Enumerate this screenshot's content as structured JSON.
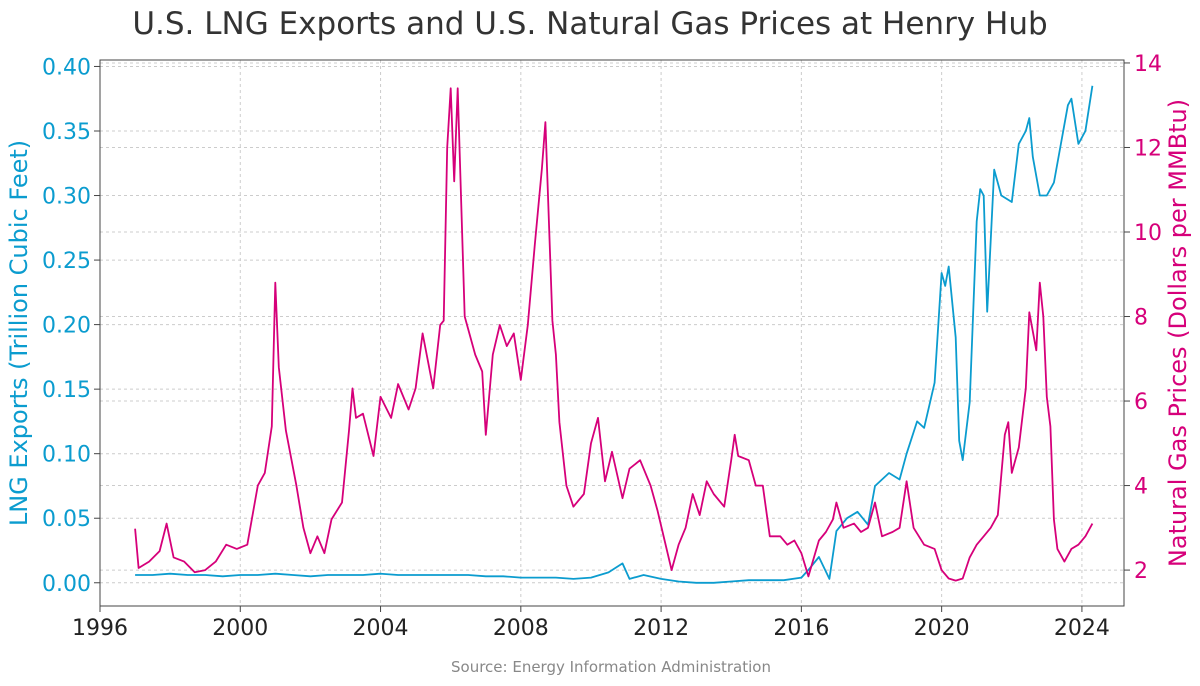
{
  "chart_data": {
    "type": "line",
    "title": "U.S. LNG Exports and U.S. Natural Gas Prices at Henry Hub",
    "source": "Source: Energy Information Administration",
    "x_ticks": [
      "1996",
      "2000",
      "2004",
      "2008",
      "2012",
      "2016",
      "2020",
      "2024"
    ],
    "xlim": [
      1996,
      2025.2
    ],
    "grid": true,
    "left_axis": {
      "label": "LNG Exports (Trillion Cubic Feet)",
      "color": "#0b9ccf",
      "ylim": [
        -0.018,
        0.405
      ],
      "ticks": [
        "0.00",
        "0.05",
        "0.10",
        "0.15",
        "0.20",
        "0.25",
        "0.30",
        "0.35",
        "0.40"
      ]
    },
    "right_axis": {
      "label": "Natural Gas Prices (Dollars per MMBtu)",
      "color": "#d6007a",
      "ylim": [
        1.15,
        14.07
      ],
      "ticks": [
        "2",
        "4",
        "6",
        "8",
        "10",
        "12",
        "14"
      ]
    },
    "series": [
      {
        "name": "LNG Exports",
        "axis": "left",
        "color": "#0b9ccf",
        "points": [
          [
            1997.0,
            0.006
          ],
          [
            1997.5,
            0.006
          ],
          [
            1998.0,
            0.007
          ],
          [
            1998.5,
            0.006
          ],
          [
            1999.0,
            0.006
          ],
          [
            1999.5,
            0.005
          ],
          [
            2000.0,
            0.006
          ],
          [
            2000.5,
            0.006
          ],
          [
            2001.0,
            0.007
          ],
          [
            2001.5,
            0.006
          ],
          [
            2002.0,
            0.005
          ],
          [
            2002.5,
            0.006
          ],
          [
            2003.0,
            0.006
          ],
          [
            2003.5,
            0.006
          ],
          [
            2004.0,
            0.007
          ],
          [
            2004.5,
            0.006
          ],
          [
            2005.0,
            0.006
          ],
          [
            2005.5,
            0.006
          ],
          [
            2006.0,
            0.006
          ],
          [
            2006.5,
            0.006
          ],
          [
            2007.0,
            0.005
          ],
          [
            2007.5,
            0.005
          ],
          [
            2008.0,
            0.004
          ],
          [
            2008.5,
            0.004
          ],
          [
            2009.0,
            0.004
          ],
          [
            2009.5,
            0.003
          ],
          [
            2010.0,
            0.004
          ],
          [
            2010.5,
            0.008
          ],
          [
            2010.9,
            0.015
          ],
          [
            2011.1,
            0.003
          ],
          [
            2011.5,
            0.006
          ],
          [
            2012.0,
            0.003
          ],
          [
            2012.5,
            0.001
          ],
          [
            2013.0,
            0.0
          ],
          [
            2013.5,
            0.0
          ],
          [
            2014.0,
            0.001
          ],
          [
            2014.5,
            0.002
          ],
          [
            2015.0,
            0.002
          ],
          [
            2015.5,
            0.002
          ],
          [
            2016.0,
            0.004
          ],
          [
            2016.2,
            0.01
          ],
          [
            2016.5,
            0.02
          ],
          [
            2016.8,
            0.003
          ],
          [
            2017.0,
            0.04
          ],
          [
            2017.3,
            0.05
          ],
          [
            2017.6,
            0.055
          ],
          [
            2017.9,
            0.045
          ],
          [
            2018.1,
            0.075
          ],
          [
            2018.5,
            0.085
          ],
          [
            2018.8,
            0.08
          ],
          [
            2019.0,
            0.1
          ],
          [
            2019.3,
            0.125
          ],
          [
            2019.5,
            0.12
          ],
          [
            2019.8,
            0.155
          ],
          [
            2020.0,
            0.24
          ],
          [
            2020.1,
            0.23
          ],
          [
            2020.2,
            0.245
          ],
          [
            2020.4,
            0.19
          ],
          [
            2020.5,
            0.11
          ],
          [
            2020.6,
            0.095
          ],
          [
            2020.8,
            0.14
          ],
          [
            2021.0,
            0.28
          ],
          [
            2021.1,
            0.305
          ],
          [
            2021.2,
            0.3
          ],
          [
            2021.3,
            0.21
          ],
          [
            2021.5,
            0.32
          ],
          [
            2021.7,
            0.3
          ],
          [
            2022.0,
            0.295
          ],
          [
            2022.2,
            0.34
          ],
          [
            2022.4,
            0.35
          ],
          [
            2022.5,
            0.36
          ],
          [
            2022.6,
            0.33
          ],
          [
            2022.8,
            0.3
          ],
          [
            2023.0,
            0.3
          ],
          [
            2023.2,
            0.31
          ],
          [
            2023.4,
            0.34
          ],
          [
            2023.6,
            0.37
          ],
          [
            2023.7,
            0.375
          ],
          [
            2023.9,
            0.34
          ],
          [
            2024.1,
            0.35
          ],
          [
            2024.3,
            0.385
          ]
        ]
      },
      {
        "name": "Natural Gas Prices",
        "axis": "right",
        "color": "#d6007a",
        "points": [
          [
            1997.0,
            2.98
          ],
          [
            1997.1,
            2.05
          ],
          [
            1997.4,
            2.2
          ],
          [
            1997.7,
            2.45
          ],
          [
            1997.9,
            3.1
          ],
          [
            1998.1,
            2.3
          ],
          [
            1998.4,
            2.2
          ],
          [
            1998.7,
            1.95
          ],
          [
            1999.0,
            2.0
          ],
          [
            1999.3,
            2.2
          ],
          [
            1999.6,
            2.6
          ],
          [
            1999.9,
            2.5
          ],
          [
            2000.2,
            2.6
          ],
          [
            2000.5,
            4.0
          ],
          [
            2000.7,
            4.3
          ],
          [
            2000.9,
            5.4
          ],
          [
            2001.0,
            8.8
          ],
          [
            2001.1,
            6.8
          ],
          [
            2001.3,
            5.3
          ],
          [
            2001.6,
            4.0
          ],
          [
            2001.8,
            3.0
          ],
          [
            2002.0,
            2.4
          ],
          [
            2002.2,
            2.8
          ],
          [
            2002.4,
            2.4
          ],
          [
            2002.6,
            3.2
          ],
          [
            2002.9,
            3.6
          ],
          [
            2003.1,
            5.3
          ],
          [
            2003.2,
            6.3
          ],
          [
            2003.3,
            5.6
          ],
          [
            2003.5,
            5.7
          ],
          [
            2003.8,
            4.7
          ],
          [
            2004.0,
            6.1
          ],
          [
            2004.3,
            5.6
          ],
          [
            2004.5,
            6.4
          ],
          [
            2004.8,
            5.8
          ],
          [
            2005.0,
            6.3
          ],
          [
            2005.2,
            7.6
          ],
          [
            2005.5,
            6.3
          ],
          [
            2005.7,
            7.8
          ],
          [
            2005.8,
            7.9
          ],
          [
            2005.9,
            12.0
          ],
          [
            2006.0,
            13.4
          ],
          [
            2006.1,
            11.2
          ],
          [
            2006.2,
            13.4
          ],
          [
            2006.4,
            8.0
          ],
          [
            2006.7,
            7.1
          ],
          [
            2006.9,
            6.7
          ],
          [
            2007.0,
            5.2
          ],
          [
            2007.2,
            7.1
          ],
          [
            2007.4,
            7.8
          ],
          [
            2007.6,
            7.3
          ],
          [
            2007.8,
            7.6
          ],
          [
            2008.0,
            6.5
          ],
          [
            2008.2,
            7.8
          ],
          [
            2008.4,
            9.7
          ],
          [
            2008.6,
            11.5
          ],
          [
            2008.7,
            12.6
          ],
          [
            2008.9,
            7.9
          ],
          [
            2009.0,
            7.1
          ],
          [
            2009.1,
            5.5
          ],
          [
            2009.3,
            4.0
          ],
          [
            2009.5,
            3.5
          ],
          [
            2009.8,
            3.8
          ],
          [
            2010.0,
            5.0
          ],
          [
            2010.2,
            5.6
          ],
          [
            2010.4,
            4.1
          ],
          [
            2010.6,
            4.8
          ],
          [
            2010.9,
            3.7
          ],
          [
            2011.1,
            4.4
          ],
          [
            2011.4,
            4.6
          ],
          [
            2011.7,
            4.0
          ],
          [
            2011.9,
            3.4
          ],
          [
            2012.1,
            2.7
          ],
          [
            2012.3,
            2.0
          ],
          [
            2012.5,
            2.6
          ],
          [
            2012.7,
            3.0
          ],
          [
            2012.9,
            3.8
          ],
          [
            2013.1,
            3.3
          ],
          [
            2013.3,
            4.1
          ],
          [
            2013.5,
            3.8
          ],
          [
            2013.8,
            3.5
          ],
          [
            2014.0,
            4.6
          ],
          [
            2014.1,
            5.2
          ],
          [
            2014.2,
            4.7
          ],
          [
            2014.5,
            4.6
          ],
          [
            2014.7,
            4.0
          ],
          [
            2014.9,
            4.0
          ],
          [
            2015.1,
            2.8
          ],
          [
            2015.4,
            2.8
          ],
          [
            2015.6,
            2.6
          ],
          [
            2015.8,
            2.7
          ],
          [
            2016.0,
            2.4
          ],
          [
            2016.2,
            1.85
          ],
          [
            2016.5,
            2.7
          ],
          [
            2016.7,
            2.9
          ],
          [
            2016.9,
            3.2
          ],
          [
            2017.0,
            3.6
          ],
          [
            2017.2,
            3.0
          ],
          [
            2017.5,
            3.1
          ],
          [
            2017.7,
            2.9
          ],
          [
            2017.9,
            3.0
          ],
          [
            2018.1,
            3.6
          ],
          [
            2018.3,
            2.8
          ],
          [
            2018.6,
            2.9
          ],
          [
            2018.8,
            3.0
          ],
          [
            2019.0,
            4.1
          ],
          [
            2019.2,
            3.0
          ],
          [
            2019.5,
            2.6
          ],
          [
            2019.8,
            2.5
          ],
          [
            2020.0,
            2.0
          ],
          [
            2020.2,
            1.8
          ],
          [
            2020.4,
            1.75
          ],
          [
            2020.6,
            1.8
          ],
          [
            2020.8,
            2.3
          ],
          [
            2021.0,
            2.6
          ],
          [
            2021.2,
            2.8
          ],
          [
            2021.4,
            3.0
          ],
          [
            2021.6,
            3.3
          ],
          [
            2021.8,
            5.2
          ],
          [
            2021.9,
            5.5
          ],
          [
            2022.0,
            4.3
          ],
          [
            2022.2,
            4.9
          ],
          [
            2022.4,
            6.3
          ],
          [
            2022.5,
            8.1
          ],
          [
            2022.7,
            7.2
          ],
          [
            2022.8,
            8.8
          ],
          [
            2022.9,
            8.0
          ],
          [
            2023.0,
            6.1
          ],
          [
            2023.1,
            5.4
          ],
          [
            2023.2,
            3.2
          ],
          [
            2023.3,
            2.5
          ],
          [
            2023.5,
            2.2
          ],
          [
            2023.7,
            2.5
          ],
          [
            2023.9,
            2.6
          ],
          [
            2024.1,
            2.8
          ],
          [
            2024.3,
            3.1
          ]
        ]
      }
    ]
  }
}
